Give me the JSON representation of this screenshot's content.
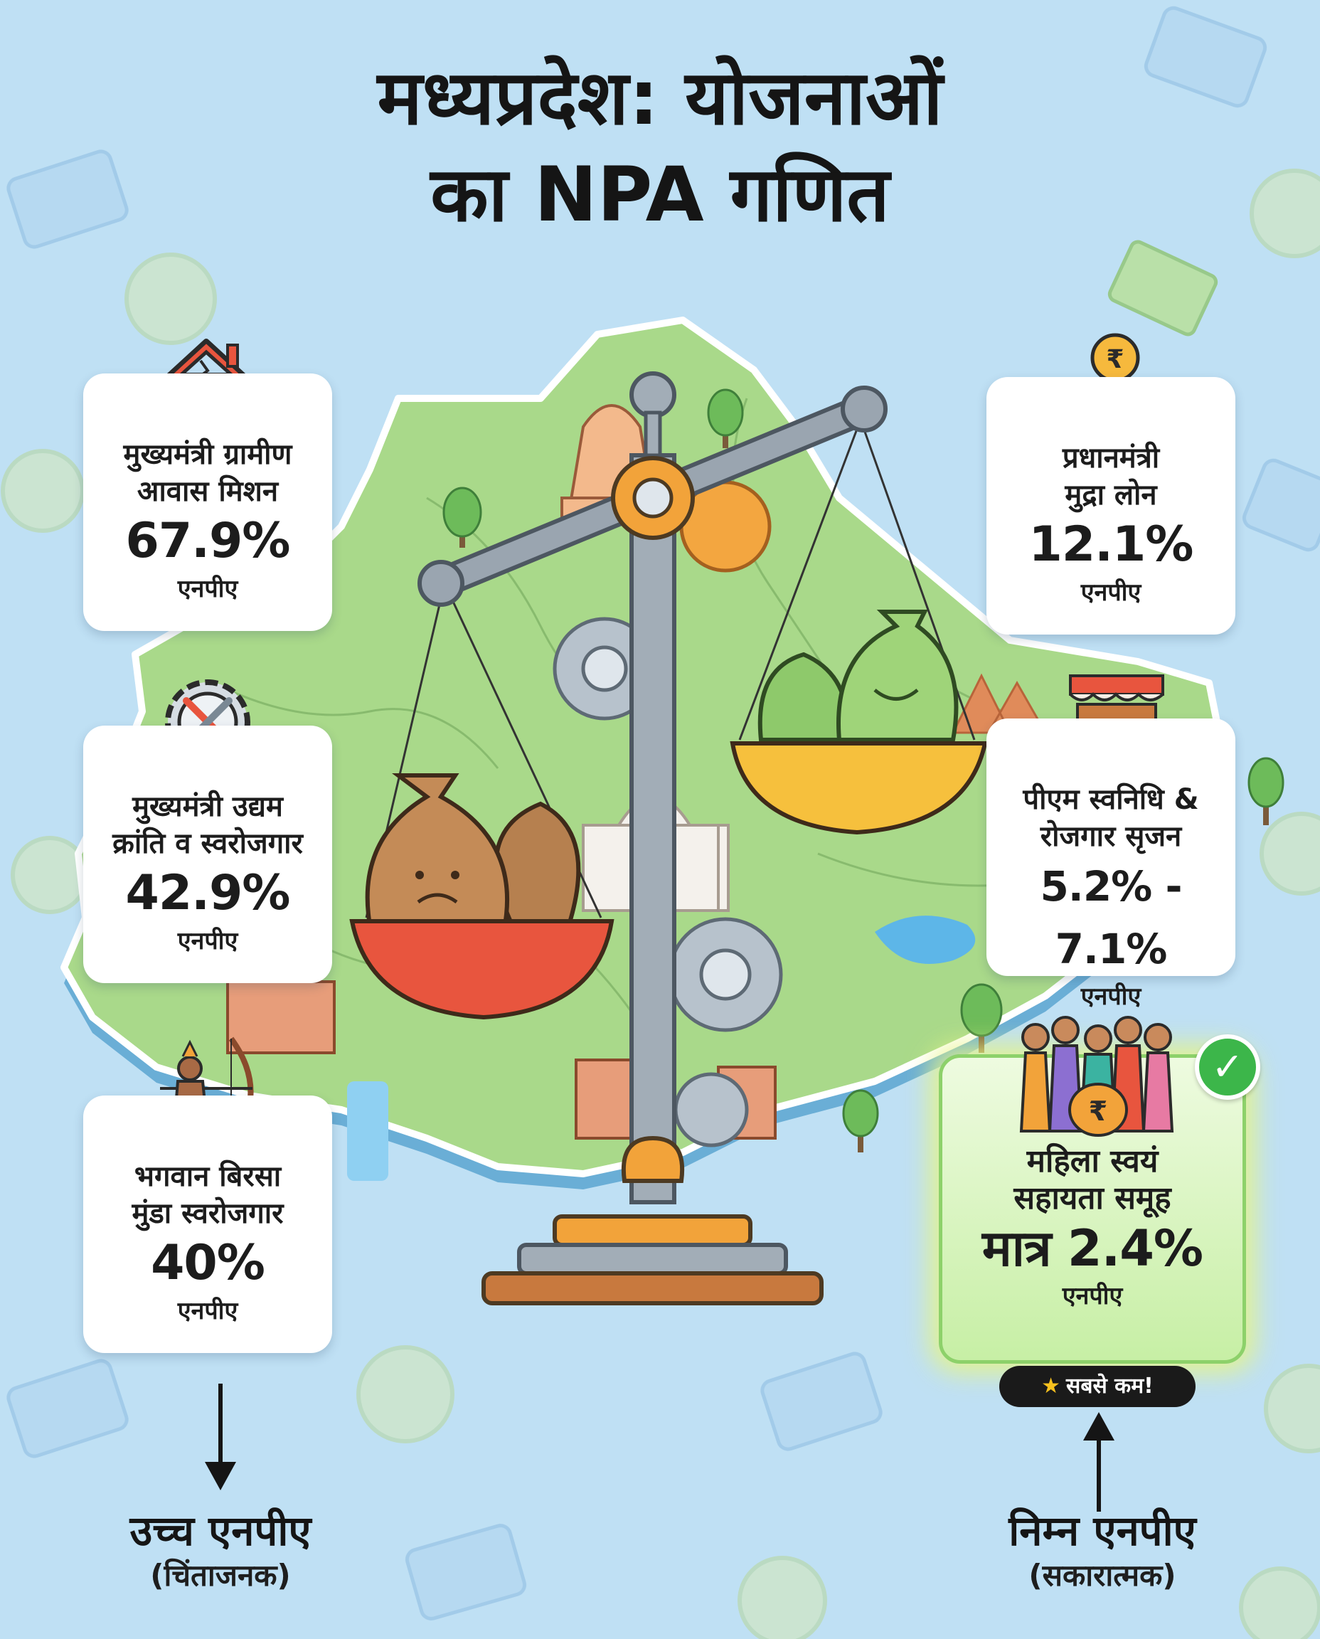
{
  "title": {
    "line1": "मध्यप्रदेश: योजनाओं",
    "line2": "का NPA गणित"
  },
  "cards": [
    {
      "name1": "मुख्यमंत्री ग्रामीण",
      "name2": "आवास मिशन",
      "value": "67.9%",
      "unit": "एनपीए",
      "icon": "cracked-house-icon"
    },
    {
      "name1": "मुख्यमंत्री उद्यम",
      "name2": "क्रांति व स्वरोजगार",
      "value": "42.9%",
      "unit": "एनपीए",
      "icon": "gear-tools-icon"
    },
    {
      "name1": "भगवान बिरसा",
      "name2": "मुंडा स्वरोजगार",
      "value": "40%",
      "unit": "एनपीए",
      "icon": "archer-icon"
    },
    {
      "name1": "प्रधानमंत्री",
      "name2": "मुद्रा लोन",
      "value": "12.1%",
      "unit": "एनपीए",
      "icon": "rupee-coin-hand-icon"
    },
    {
      "name1": "पीएम स्वनिधि &",
      "name2": "रोजगार सृजन",
      "value": "5.2% - 7.1%",
      "unit": "एनपीए",
      "icon": "food-cart-icon"
    },
    {
      "name1": "महिला स्वयं",
      "name2": "सहायता समूह",
      "value": "मात्र 2.4%",
      "unit": "एनपीए",
      "icon": "women-group-icon"
    }
  ],
  "badge": {
    "label": "सबसे कम!",
    "icon": "star-icon"
  },
  "legend": {
    "high": {
      "title": "उच्च एनपीए",
      "sub": "(चिंताजनक)"
    },
    "low": {
      "title": "निम्न एनपीए",
      "sub": "(सकारात्मक)"
    }
  },
  "colors": {
    "background": "#bfe0f4",
    "map_green": "#a9d98a",
    "scale_grey": "#8f9aa6",
    "scale_orange": "#f2a33a",
    "pan_red": "#e8553e",
    "pan_yellow": "#f6c03d",
    "highlight_green": "#8dd16a"
  }
}
